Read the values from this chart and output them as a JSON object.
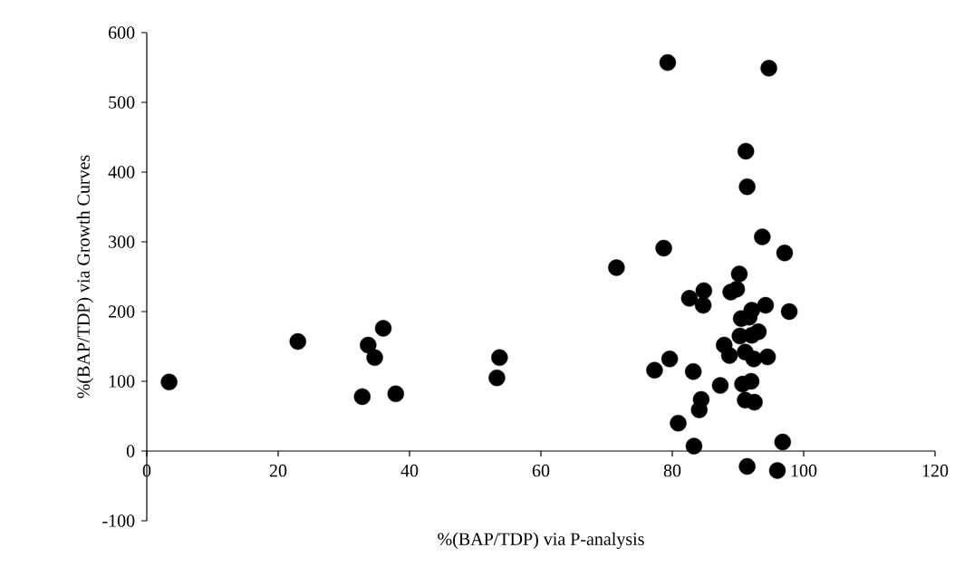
{
  "chart_data": {
    "type": "scatter",
    "xlabel": "%(BAP/TDP) via P-analysis",
    "ylabel": "%(BAP/TDP) via Growth Curves",
    "x": [
      3.4,
      23.0,
      32.8,
      33.7,
      34.7,
      36.0,
      37.9,
      53.7,
      53.3,
      79.3,
      94.7,
      91.2,
      91.4,
      78.7,
      93.7,
      97.1,
      90.2,
      71.5,
      84.8,
      82.6,
      84.7,
      88.9,
      89.8,
      94.2,
      97.8,
      92.1,
      90.5,
      91.7,
      93.1,
      92.1,
      90.3,
      87.9,
      88.7,
      91.1,
      92.4,
      94.5,
      79.6,
      77.3,
      83.2,
      87.3,
      90.7,
      92.0,
      84.4,
      84.1,
      91.1,
      92.5,
      80.9,
      83.3,
      96.8,
      91.4,
      96.0
    ],
    "values": [
      99,
      157,
      78,
      152,
      134,
      176,
      82,
      134,
      105,
      557,
      549,
      430,
      379,
      291,
      307,
      284,
      254,
      263,
      230,
      219,
      209,
      228,
      232,
      209,
      200,
      202,
      190,
      192,
      171,
      166,
      165,
      152,
      137,
      142,
      132,
      135,
      132,
      116,
      114,
      94,
      96,
      100,
      74,
      59,
      73,
      70,
      40,
      7,
      13,
      -22,
      -28
    ],
    "color": "#000000",
    "marker": "circle",
    "xlim": [
      0,
      120
    ],
    "ylim": [
      -100,
      600
    ],
    "xticks": [
      0,
      20,
      40,
      60,
      80,
      100,
      120
    ],
    "yticks": [
      -100,
      0,
      100,
      200,
      300,
      400,
      500,
      600
    ],
    "grid": false
  }
}
